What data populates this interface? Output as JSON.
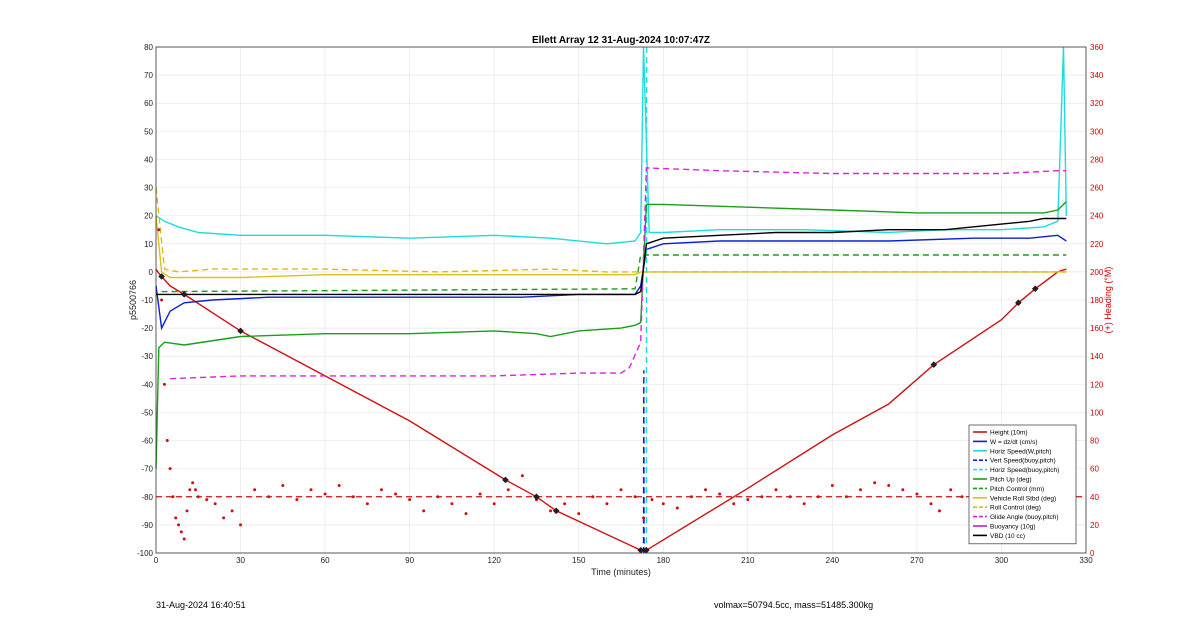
{
  "footer": {
    "left": "31-Aug-2024 16:40:51",
    "right": "volmax=50794.5cc, mass=51485.300kg"
  },
  "chart_data": {
    "type": "line",
    "title": "Ellett Array 12 31-Aug-2024 10:07:47Z",
    "xlabel": "Time (minutes)",
    "ylabel": "p5500766",
    "y2label": "(+) Heading (°M)",
    "xlim": [
      0,
      330
    ],
    "ylim": [
      -100,
      80
    ],
    "y2lim": [
      0,
      360
    ],
    "xticks": [
      0,
      30,
      60,
      90,
      120,
      150,
      180,
      210,
      240,
      270,
      300,
      330
    ],
    "yticks": [
      -100,
      -90,
      -80,
      -70,
      -60,
      -50,
      -40,
      -30,
      -20,
      -10,
      0,
      10,
      20,
      30,
      40,
      50,
      60,
      70,
      80
    ],
    "y2ticks": [
      0,
      20,
      40,
      60,
      80,
      100,
      120,
      140,
      160,
      180,
      200,
      220,
      240,
      260,
      280,
      300,
      320,
      340,
      360
    ],
    "grid": true,
    "legend_position": "bottom-right",
    "series": [
      {
        "name": "Height (10m)",
        "color": "#d01010",
        "style": "solid",
        "x": [
          0,
          1,
          5,
          10,
          30,
          60,
          90,
          124,
          135,
          142,
          172,
          174,
          210,
          240,
          260,
          276,
          300,
          306,
          312,
          320,
          323
        ],
        "y": [
          1,
          -0.5,
          -5,
          -8,
          -21,
          -37,
          -53,
          -74,
          -80,
          -85,
          -99,
          -99,
          -77,
          -58,
          -47,
          -33,
          -17,
          -11,
          -6,
          0,
          1
        ]
      },
      {
        "name": "W = dz/dt (cm/s)",
        "color": "#0b1fd6",
        "style": "solid",
        "x": [
          0,
          2,
          5,
          10,
          20,
          40,
          70,
          100,
          130,
          150,
          170,
          172,
          174,
          180,
          200,
          230,
          260,
          290,
          310,
          320,
          323
        ],
        "y": [
          -5,
          -20,
          -14,
          -11,
          -10,
          -9,
          -9,
          -9,
          -9,
          -8,
          -8,
          -5,
          8,
          10,
          11,
          11,
          11,
          12,
          12,
          13,
          11
        ]
      },
      {
        "name": "Horiz Speed(W,pitch)",
        "color": "#1fdcdc",
        "style": "solid",
        "x": [
          0,
          3,
          8,
          15,
          30,
          60,
          90,
          120,
          140,
          160,
          170,
          172,
          173,
          175,
          180,
          200,
          230,
          260,
          280,
          300,
          315,
          320,
          322,
          323
        ],
        "y": [
          20,
          18,
          16,
          14,
          13,
          13,
          12,
          13,
          12,
          10,
          11,
          14,
          80,
          14,
          14,
          15,
          15,
          14,
          15,
          15,
          16,
          18,
          80,
          20
        ]
      },
      {
        "name": "Vert Speed(buoy,pitch)",
        "color": "#0b1fd6",
        "style": "dashed",
        "x": [
          173,
          173.1,
          173.2
        ],
        "y": [
          -100,
          -35,
          -100
        ]
      },
      {
        "name": "Horiz Speed(buoy,pitch)",
        "color": "#1fdcdc",
        "style": "dashed",
        "x": [
          174,
          174.1
        ],
        "y": [
          -100,
          80
        ]
      },
      {
        "name": "Pitch Up (deg)",
        "color": "#1a9e1a",
        "style": "solid",
        "x": [
          0,
          1,
          3,
          10,
          30,
          60,
          90,
          120,
          135,
          140,
          150,
          165,
          170,
          172,
          174,
          180,
          210,
          240,
          270,
          300,
          315,
          320,
          323
        ],
        "y": [
          -70,
          -27,
          -25,
          -26,
          -23,
          -22,
          -22,
          -21,
          -22,
          -23,
          -21,
          -20,
          -19,
          -18,
          24,
          24,
          23,
          22,
          21,
          21,
          21,
          22,
          25
        ]
      },
      {
        "name": "Pitch Control (mm)",
        "color": "#1a9e1a",
        "style": "dashed",
        "x": [
          2,
          170,
          172,
          323
        ],
        "y": [
          -7,
          -6,
          6,
          6
        ]
      },
      {
        "name": "Vehicle Roll Stbd (deg)",
        "color": "#d8c21c",
        "style": "solid",
        "x": [
          0,
          2,
          5,
          10,
          30,
          60,
          120,
          140,
          170,
          172,
          174,
          200,
          240,
          280,
          300,
          315,
          320,
          323
        ],
        "y": [
          20,
          0,
          -2,
          -2,
          -2,
          -1,
          -1,
          -1,
          -1,
          0,
          0,
          0,
          0,
          0,
          0,
          0,
          0,
          0
        ]
      },
      {
        "name": "Roll Control (deg)",
        "color": "#e0b810",
        "style": "dashed",
        "x": [
          0,
          3,
          8,
          20,
          60,
          100,
          140,
          160,
          172,
          174,
          200,
          250,
          300,
          320,
          323
        ],
        "y": [
          30,
          1,
          0,
          1,
          1,
          0,
          1,
          0,
          0,
          0,
          0,
          0,
          0,
          0,
          0
        ]
      },
      {
        "name": "Glide Angle (buoy,pitch)",
        "color": "#dd22dd",
        "style": "dashed",
        "x": [
          5,
          30,
          60,
          90,
          120,
          150,
          165,
          168,
          172,
          174,
          200,
          240,
          280,
          300,
          320,
          323
        ],
        "y": [
          -38,
          -37,
          -37,
          -37,
          -37,
          -36,
          -36,
          -34,
          -25,
          37,
          36,
          35,
          35,
          35,
          36,
          36
        ]
      },
      {
        "name": "Buoyancy (10g)",
        "color": "#c51cc5",
        "style": "solid",
        "x": [],
        "y": []
      },
      {
        "name": "VBD (10 cc)",
        "color": "#000000",
        "style": "solid",
        "x": [
          0,
          2,
          10,
          30,
          60,
          90,
          130,
          170,
          172,
          174,
          180,
          200,
          220,
          240,
          260,
          280,
          300,
          310,
          315,
          323
        ],
        "y": [
          -8,
          -8,
          -8,
          -8,
          -8,
          -8,
          -8,
          -8,
          -7,
          10,
          12,
          13,
          14,
          14,
          15,
          15,
          17,
          18,
          19,
          19
        ]
      }
    ],
    "heading": {
      "name": "(+) Heading (°M)",
      "color": "#d01010",
      "mean": 40,
      "x": [
        1,
        2,
        3,
        4,
        5,
        6,
        7,
        8,
        9,
        10,
        11,
        12,
        13,
        14,
        15,
        18,
        21,
        24,
        27,
        30,
        35,
        40,
        45,
        50,
        55,
        60,
        65,
        70,
        75,
        80,
        85,
        90,
        95,
        100,
        105,
        110,
        115,
        120,
        125,
        130,
        135,
        140,
        145,
        150,
        155,
        160,
        165,
        170,
        173,
        176,
        180,
        185,
        190,
        195,
        200,
        205,
        210,
        215,
        220,
        225,
        230,
        235,
        240,
        245,
        250,
        255,
        260,
        265,
        270,
        275,
        278,
        282,
        286,
        290,
        295,
        300,
        305,
        310,
        315,
        318,
        321
      ],
      "y": [
        230,
        180,
        120,
        80,
        60,
        40,
        25,
        20,
        15,
        10,
        30,
        45,
        50,
        45,
        40,
        38,
        35,
        25,
        30,
        20,
        45,
        40,
        48,
        38,
        45,
        42,
        48,
        40,
        35,
        45,
        42,
        38,
        30,
        40,
        35,
        28,
        42,
        35,
        45,
        55,
        38,
        30,
        35,
        28,
        40,
        35,
        45,
        40,
        25,
        38,
        35,
        32,
        40,
        45,
        42,
        35,
        38,
        40,
        45,
        40,
        35,
        40,
        48,
        40,
        45,
        50,
        48,
        45,
        42,
        35,
        30,
        45,
        40,
        38,
        30,
        42,
        40,
        45,
        35,
        25,
        30
      ]
    },
    "markers_x": [
      2,
      10,
      30,
      124,
      135,
      142,
      172,
      174,
      276,
      306,
      312
    ]
  }
}
